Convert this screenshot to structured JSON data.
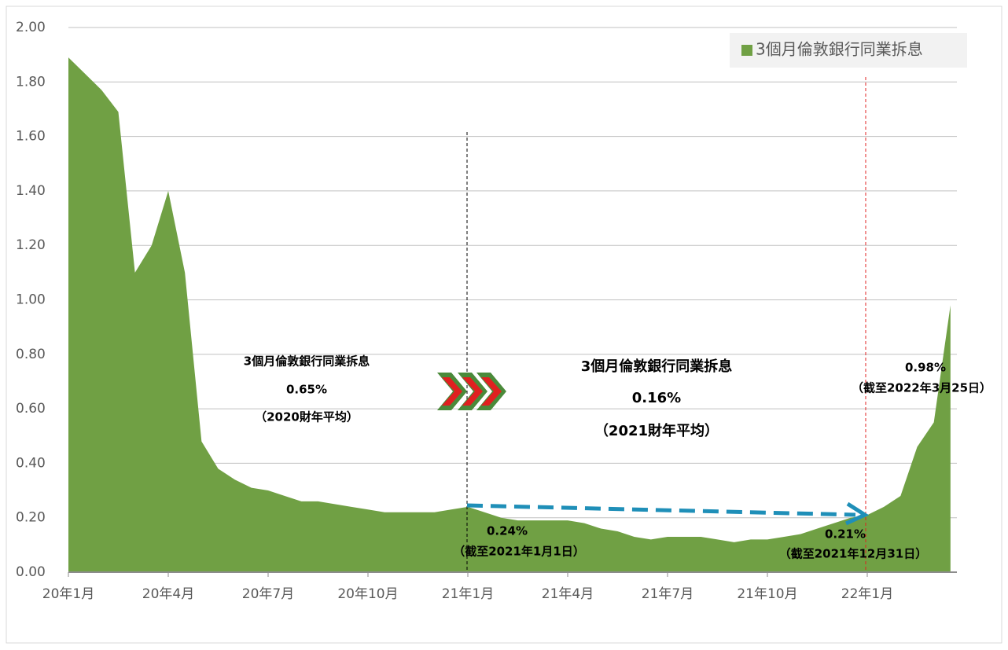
{
  "chart_data": {
    "type": "area",
    "categories": [
      "20年1月",
      null,
      null,
      null,
      null,
      null,
      "20年4月",
      null,
      null,
      null,
      null,
      null,
      "20年7月",
      null,
      null,
      null,
      null,
      null,
      "20年10月",
      null,
      null,
      null,
      null,
      null,
      "21年1月",
      null,
      null,
      null,
      null,
      null,
      "21年4月",
      null,
      null,
      null,
      null,
      null,
      "21年7月",
      null,
      null,
      null,
      null,
      null,
      "21年10月",
      null,
      null,
      null,
      null,
      null,
      "22年1月",
      null,
      null,
      null,
      null,
      null
    ],
    "series": [
      {
        "name": "3個月倫敦銀行同業拆息",
        "color": "#70a044",
        "values": [
          1.89,
          1.83,
          1.77,
          1.69,
          1.1,
          1.2,
          1.4,
          1.1,
          0.48,
          0.38,
          0.34,
          0.31,
          0.3,
          0.28,
          0.26,
          0.26,
          0.25,
          0.24,
          0.23,
          0.22,
          0.22,
          0.22,
          0.22,
          0.23,
          0.24,
          0.22,
          0.2,
          0.19,
          0.19,
          0.19,
          0.19,
          0.18,
          0.16,
          0.15,
          0.13,
          0.12,
          0.13,
          0.13,
          0.13,
          0.12,
          0.11,
          0.12,
          0.12,
          0.13,
          0.14,
          0.16,
          0.18,
          0.2,
          0.21,
          0.24,
          0.28,
          0.46,
          0.55,
          0.98
        ]
      }
    ],
    "ylim": [
      0,
      2
    ],
    "yticks": [
      {
        "value": 0,
        "label": "0.00"
      },
      {
        "value": 0.2,
        "label": "0.20"
      },
      {
        "value": 0.4,
        "label": "0.40"
      },
      {
        "value": 0.6,
        "label": "0.60"
      },
      {
        "value": 0.8,
        "label": "0.80"
      },
      {
        "value": 1,
        "label": "1.00"
      },
      {
        "value": 1.2,
        "label": "1.20"
      },
      {
        "value": 1.4,
        "label": "1.40"
      },
      {
        "value": 1.6,
        "label": "1.60"
      },
      {
        "value": 1.8,
        "label": "1.80"
      },
      {
        "value": 2,
        "label": "2.00"
      }
    ],
    "grid": true,
    "legend": "top-right",
    "annotations": [
      [
        "3個月倫敦銀行同業拆息",
        "0.65%",
        "（2020財年平均）"
      ],
      [
        "3個月倫敦銀行同業拆息",
        "0.16%",
        "（2021財年平均）"
      ],
      [
        "0.24%",
        "（截至2021年1月1日）"
      ],
      [
        "0.21%",
        "（截至2021年12月31日）"
      ],
      [
        "0.98%",
        "（截至2022年3月25日）"
      ]
    ]
  }
}
